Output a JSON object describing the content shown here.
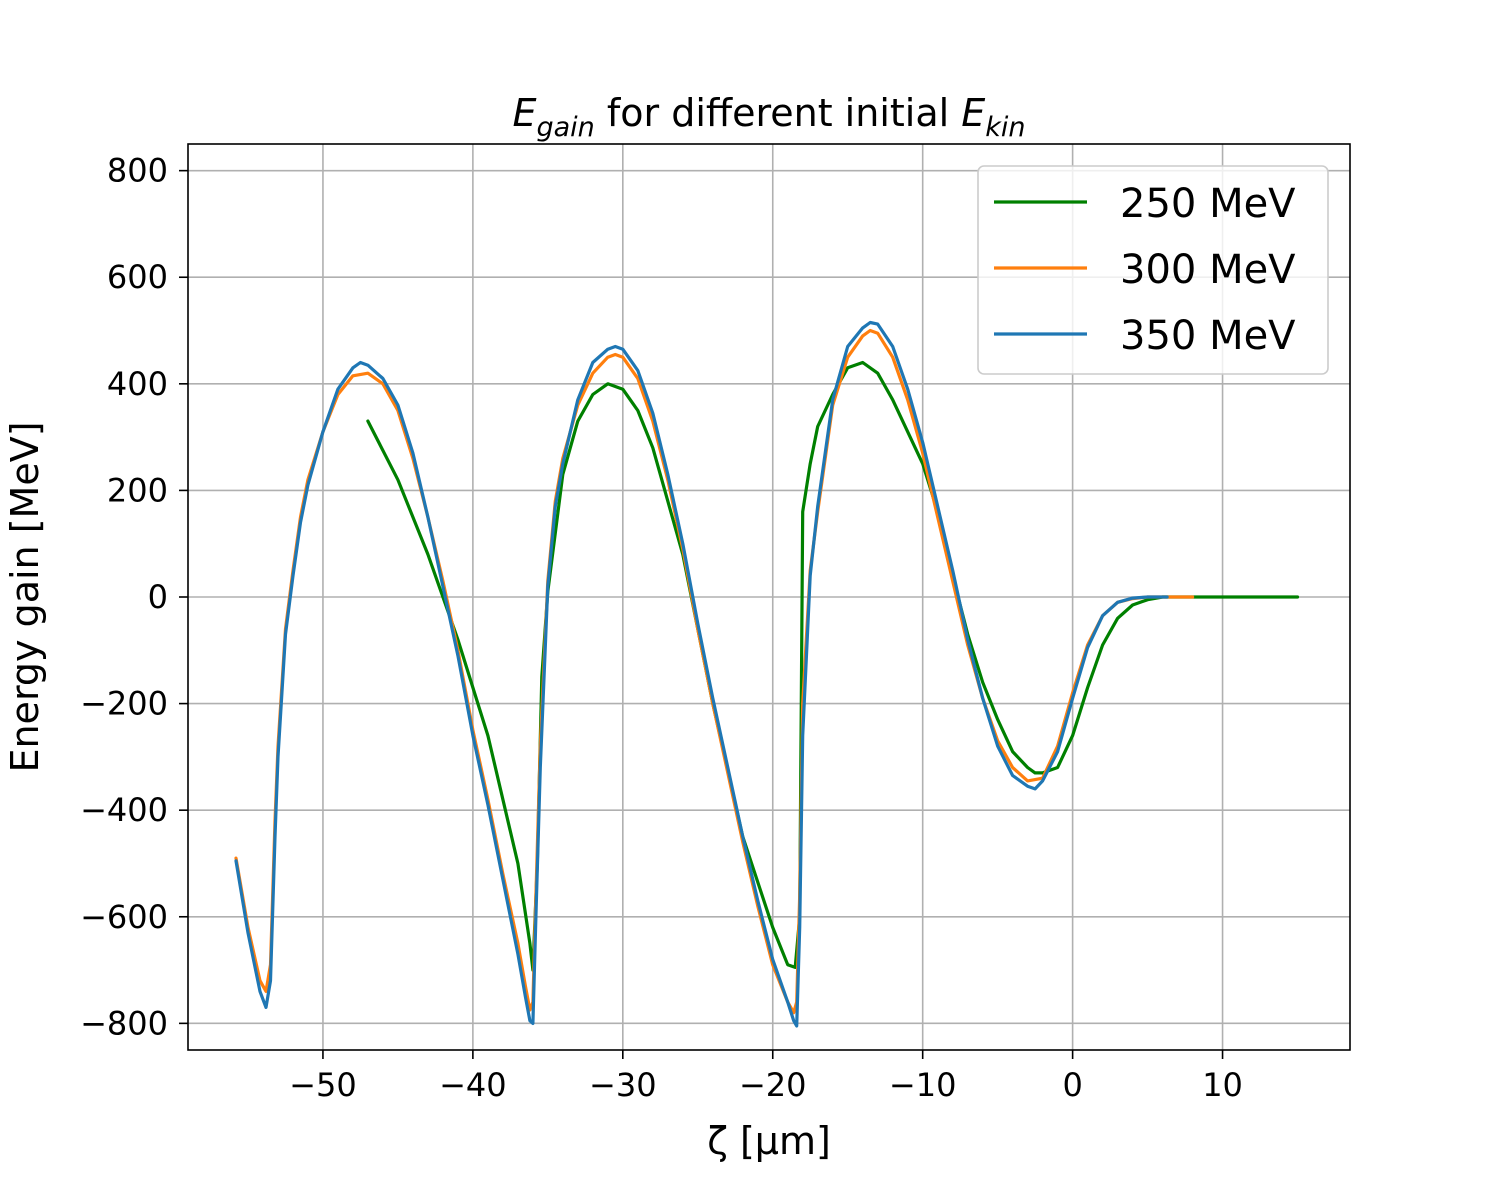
{
  "chart_data": {
    "type": "line",
    "title": {
      "main": "E",
      "main_sub": "gain",
      "middle": " for different initial ",
      "end": "E",
      "end_sub": "kin"
    },
    "xlabel": "ζ [μm]",
    "ylabel": "Energy gain [MeV]",
    "xlim": [
      -59,
      18.5
    ],
    "ylim": [
      -850,
      850
    ],
    "xticks": [
      -50,
      -40,
      -30,
      -20,
      -10,
      0,
      10
    ],
    "xtick_labels": [
      "−50",
      "−40",
      "−30",
      "−20",
      "−10",
      "0",
      "10"
    ],
    "yticks": [
      -800,
      -600,
      -400,
      -200,
      0,
      200,
      400,
      600,
      800
    ],
    "ytick_labels": [
      "−800",
      "−600",
      "−400",
      "−200",
      "0",
      "200",
      "400",
      "600",
      "800"
    ],
    "grid": true,
    "legend_position": "top-right",
    "series": [
      {
        "name": "250 MeV",
        "color": "#008000",
        "x": [
          -47,
          -45,
          -43,
          -41,
          -39,
          -37,
          -36.2,
          -36,
          -35.7,
          -35.4,
          -35,
          -34,
          -33,
          -32,
          -31,
          -30,
          -29,
          -28,
          -27,
          -26,
          -24,
          -22,
          -20,
          -19,
          -18.5,
          -18.2,
          -18,
          -17.5,
          -17,
          -16,
          -15,
          -14,
          -13,
          -12,
          -11,
          -10,
          -9,
          -8,
          -7,
          -6,
          -5,
          -4,
          -3,
          -2.5,
          -2,
          -1,
          0,
          1,
          2,
          3,
          4,
          5,
          6,
          8,
          10,
          15
        ],
        "y": [
          330,
          220,
          80,
          -80,
          -260,
          -500,
          -650,
          -700,
          -500,
          -150,
          10,
          230,
          330,
          380,
          400,
          390,
          350,
          280,
          180,
          80,
          -200,
          -450,
          -620,
          -690,
          -695,
          -600,
          160,
          250,
          320,
          380,
          430,
          440,
          420,
          370,
          310,
          250,
          160,
          40,
          -70,
          -160,
          -230,
          -290,
          -320,
          -330,
          -330,
          -320,
          -260,
          -170,
          -90,
          -40,
          -15,
          -5,
          0,
          0,
          0,
          0
        ]
      },
      {
        "name": "300 MeV",
        "color": "#ff7f0e",
        "x": [
          -55.8,
          -55,
          -54.2,
          -53.8,
          -53.5,
          -53.2,
          -53,
          -52.5,
          -52,
          -51.5,
          -51,
          -50,
          -49,
          -48,
          -47,
          -46,
          -45,
          -44,
          -43,
          -42,
          -41,
          -40,
          -39,
          -38,
          -37,
          -36.5,
          -36.2,
          -36,
          -35.8,
          -35.5,
          -35,
          -34.5,
          -34,
          -33,
          -32,
          -31,
          -30.5,
          -30,
          -29,
          -28,
          -27,
          -26,
          -25,
          -24,
          -23,
          -22,
          -21,
          -20,
          -19,
          -18.6,
          -18.4,
          -18.2,
          -18,
          -17.5,
          -17,
          -16.5,
          -16,
          -15,
          -14,
          -13.5,
          -13,
          -12,
          -11,
          -10,
          -9,
          -8,
          -7,
          -6,
          -5,
          -4,
          -3,
          -2,
          -1,
          0,
          1,
          2,
          3,
          4,
          5,
          6,
          8
        ],
        "y": [
          -490,
          -620,
          -720,
          -740,
          -690,
          -420,
          -280,
          -60,
          50,
          150,
          220,
          310,
          380,
          415,
          420,
          400,
          350,
          260,
          150,
          30,
          -100,
          -250,
          -380,
          -520,
          -650,
          -730,
          -775,
          -760,
          -560,
          -280,
          30,
          180,
          260,
          360,
          420,
          450,
          455,
          450,
          410,
          330,
          220,
          90,
          -60,
          -200,
          -330,
          -460,
          -580,
          -690,
          -760,
          -780,
          -760,
          -560,
          -200,
          50,
          160,
          260,
          360,
          450,
          490,
          500,
          495,
          450,
          370,
          270,
          150,
          30,
          -90,
          -190,
          -270,
          -320,
          -345,
          -340,
          -280,
          -180,
          -90,
          -35,
          -10,
          -3,
          0,
          0,
          0
        ]
      },
      {
        "name": "350 MeV",
        "color": "#1f77b4",
        "x": [
          -55.8,
          -55,
          -54.2,
          -53.8,
          -53.5,
          -53.2,
          -53,
          -52.5,
          -52,
          -51.5,
          -51,
          -50,
          -49,
          -48,
          -47.5,
          -47,
          -46,
          -45,
          -44,
          -43,
          -42,
          -41,
          -40,
          -39,
          -38,
          -37,
          -36.5,
          -36.2,
          -36,
          -35.8,
          -35.5,
          -35,
          -34.5,
          -34,
          -33,
          -32,
          -31,
          -30.5,
          -30,
          -29,
          -28,
          -27,
          -26,
          -25,
          -24,
          -23,
          -22,
          -21,
          -20,
          -19,
          -18.6,
          -18.4,
          -18.2,
          -18,
          -17.5,
          -17,
          -16.5,
          -16,
          -15,
          -14,
          -13.5,
          -13,
          -12,
          -11,
          -10,
          -9,
          -8,
          -7,
          -6,
          -5,
          -4,
          -3,
          -2.5,
          -2,
          -1,
          0,
          1,
          2,
          3,
          4,
          5,
          6.3
        ],
        "y": [
          -495,
          -630,
          -740,
          -770,
          -720,
          -450,
          -300,
          -70,
          40,
          140,
          210,
          310,
          390,
          430,
          440,
          435,
          410,
          360,
          270,
          150,
          20,
          -110,
          -260,
          -390,
          -530,
          -670,
          -750,
          -795,
          -800,
          -600,
          -320,
          20,
          170,
          250,
          370,
          440,
          465,
          470,
          465,
          425,
          345,
          230,
          100,
          -50,
          -190,
          -320,
          -450,
          -570,
          -680,
          -760,
          -795,
          -805,
          -620,
          -260,
          40,
          170,
          270,
          370,
          470,
          505,
          515,
          512,
          470,
          390,
          290,
          170,
          50,
          -80,
          -190,
          -280,
          -335,
          -355,
          -360,
          -345,
          -290,
          -190,
          -95,
          -35,
          -10,
          -2,
          0,
          0
        ]
      }
    ]
  }
}
